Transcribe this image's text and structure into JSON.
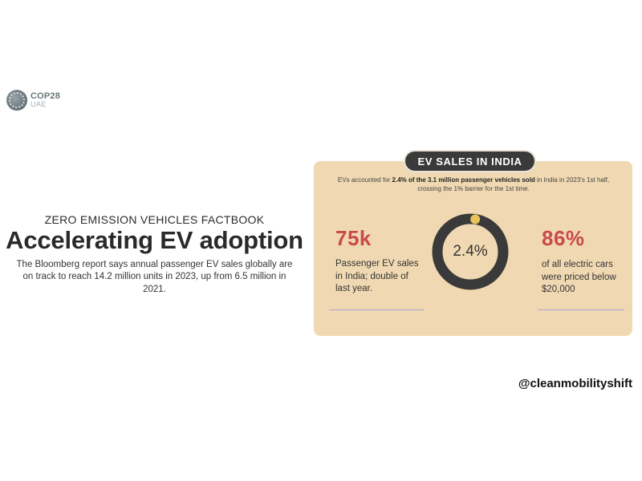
{
  "logo": {
    "line1": "COP28",
    "line2": "UAE"
  },
  "intro": {
    "kicker": "ZERO EMISSION VEHICLES FACTBOOK",
    "headline": "Accelerating EV adoption",
    "description": "The Bloomberg report says annual passenger EV sales globally are on track to reach 14.2 million units in 2023, up from 6.5 million in 2021."
  },
  "card": {
    "title": "EV SALES IN INDIA",
    "intro_pre": "EVs accounted for ",
    "intro_bold": "2.4% of the 3.1 million passenger vehicles sold",
    "intro_post": " in India in 2023's 1st half, crossing the 1% barrier for the 1st time.",
    "left_stat": {
      "value": "75k",
      "text": "Passenger EV sales in India; double of last year."
    },
    "donut": {
      "label": "2.4%",
      "percent": 2.4
    },
    "right_stat": {
      "value": "86%",
      "text": "of all electric cars were priced below $20,000"
    }
  },
  "colors": {
    "card_bg": "#f0d9b2",
    "accent_red": "#c94a4d",
    "ring": "#3a3a3a",
    "ring_dot": "#e8c25a",
    "divider": "#a7a6d4"
  },
  "handle": "@cleanmobilityshift"
}
